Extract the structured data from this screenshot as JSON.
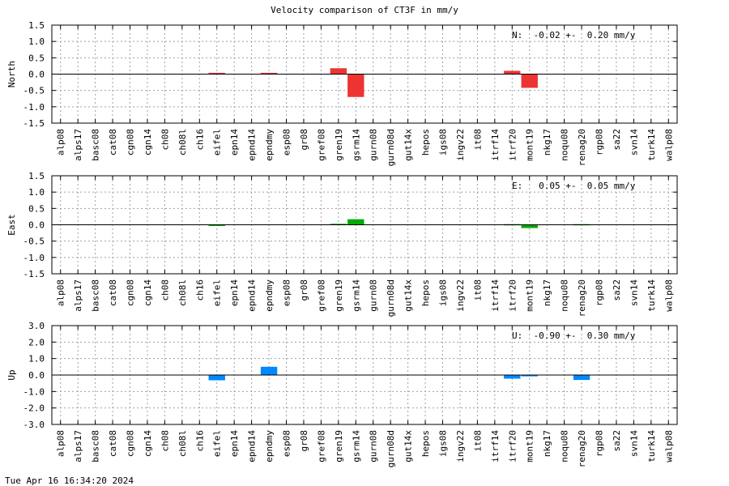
{
  "title": "Velocity comparison of CT3F in mm/y",
  "footer": "Tue Apr 16 16:34:20 2024",
  "chart_data": [
    {
      "type": "bar",
      "ylabel": "North",
      "annotation": "N:  -0.02 +-  0.20 mm/y",
      "color": "#ee3333",
      "ylim": [
        -1.5,
        1.5
      ],
      "yticks": [
        -1.5,
        -1.0,
        -0.5,
        0.0,
        0.5,
        1.0,
        1.5
      ],
      "ytick_labels": [
        "-1.5",
        "-1.0",
        "-0.5",
        "0.0",
        "0.5",
        "1.0",
        "1.5"
      ],
      "grid": true,
      "categories": [
        "alp08",
        "alps17",
        "basc08",
        "cat08",
        "cgn08",
        "cgn14",
        "ch08",
        "ch08l",
        "ch16",
        "eifel",
        "epn14",
        "epnd14",
        "epndmy",
        "esp08",
        "gr08",
        "gref08",
        "gren19",
        "gsrm14",
        "gurn08",
        "gurn08d",
        "gut14x",
        "hepos",
        "igs08",
        "ingv22",
        "it08",
        "itrf14",
        "itrf20",
        "mont19",
        "nkg17",
        "noqu08",
        "renag20",
        "rgp08",
        "sa22",
        "svn14",
        "turk14",
        "walp08"
      ],
      "values": [
        0,
        0,
        0,
        0,
        0,
        0,
        0,
        0,
        0,
        0.04,
        0,
        0,
        0.04,
        0,
        0,
        0,
        0.18,
        -0.7,
        0,
        0,
        0,
        0,
        0,
        0,
        0,
        0,
        0.1,
        -0.42,
        0,
        0,
        0,
        0,
        0,
        0,
        0,
        0
      ]
    },
    {
      "type": "bar",
      "ylabel": "East",
      "annotation": "E:   0.05 +-  0.05 mm/y",
      "color": "#00aa00",
      "ylim": [
        -1.5,
        1.5
      ],
      "yticks": [
        -1.5,
        -1.0,
        -0.5,
        0.0,
        0.5,
        1.0,
        1.5
      ],
      "ytick_labels": [
        "-1.5",
        "-1.0",
        "-0.5",
        "0.0",
        "0.5",
        "1.0",
        "1.5"
      ],
      "grid": true,
      "categories": [
        "alp08",
        "alps17",
        "basc08",
        "cat08",
        "cgn08",
        "cgn14",
        "ch08",
        "ch08l",
        "ch16",
        "eifel",
        "epn14",
        "epnd14",
        "epndmy",
        "esp08",
        "gr08",
        "gref08",
        "gren19",
        "gsrm14",
        "gurn08",
        "gurn08d",
        "gut14x",
        "hepos",
        "igs08",
        "ingv22",
        "it08",
        "itrf14",
        "itrf20",
        "mont19",
        "nkg17",
        "noqu08",
        "renag20",
        "rgp08",
        "sa22",
        "svn14",
        "turk14",
        "walp08"
      ],
      "values": [
        0,
        0,
        0,
        0,
        0,
        0,
        0,
        0,
        0,
        -0.03,
        0,
        0,
        0,
        0,
        0,
        0,
        0.03,
        0.17,
        0,
        0,
        0,
        0,
        0,
        0,
        0,
        0,
        0.02,
        -0.1,
        0,
        0,
        0.02,
        0,
        0,
        0,
        0,
        0
      ]
    },
    {
      "type": "bar",
      "ylabel": "Up",
      "annotation": "U:  -0.90 +-  0.30 mm/y",
      "color": "#0088ff",
      "ylim": [
        -3.0,
        3.0
      ],
      "yticks": [
        -3.0,
        -2.0,
        -1.0,
        0.0,
        1.0,
        2.0,
        3.0
      ],
      "ytick_labels": [
        "-3.0",
        "-2.0",
        "-1.0",
        "0.0",
        "1.0",
        "2.0",
        "3.0"
      ],
      "grid": true,
      "categories": [
        "alp08",
        "alps17",
        "basc08",
        "cat08",
        "cgn08",
        "cgn14",
        "ch08",
        "ch08l",
        "ch16",
        "eifel",
        "epn14",
        "epnd14",
        "epndmy",
        "esp08",
        "gr08",
        "gref08",
        "gren19",
        "gsrm14",
        "gurn08",
        "gurn08d",
        "gut14x",
        "hepos",
        "igs08",
        "ingv22",
        "it08",
        "itrf14",
        "itrf20",
        "mont19",
        "nkg17",
        "noqu08",
        "renag20",
        "rgp08",
        "sa22",
        "svn14",
        "turk14",
        "walp08"
      ],
      "values": [
        0,
        0,
        0,
        0,
        0,
        0,
        0,
        0,
        0,
        -0.32,
        0,
        0,
        0.5,
        0,
        0,
        0,
        0,
        0,
        0,
        0,
        0,
        0,
        0,
        0,
        0,
        0,
        -0.22,
        -0.08,
        0,
        0,
        -0.3,
        0,
        0,
        0,
        0,
        0
      ]
    }
  ]
}
